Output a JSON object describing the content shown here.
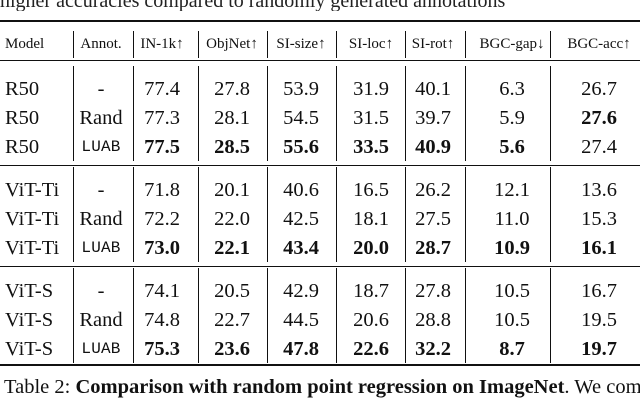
{
  "top_fragment": "higher accuracies compared to randomly generated annotations",
  "table": {
    "columns": [
      {
        "key": "model",
        "label": "Model"
      },
      {
        "key": "annot",
        "label": "Annot."
      },
      {
        "key": "in1k",
        "label": "IN-1k↑"
      },
      {
        "key": "objnet",
        "label": "ObjNet↑"
      },
      {
        "key": "sisize",
        "label": "SI-size↑"
      },
      {
        "key": "siloc",
        "label": "SI-loc↑"
      },
      {
        "key": "sirot",
        "label": "SI-rot↑"
      },
      {
        "key": "bgcgap",
        "label": "BGC-gap↓"
      },
      {
        "key": "bgcacc",
        "label": "BGC-acc↑"
      }
    ],
    "groups": [
      {
        "rows": [
          {
            "model": "R50",
            "annot": "-",
            "in1k": "77.4",
            "objnet": "27.8",
            "sisize": "53.9",
            "siloc": "31.9",
            "sirot": "40.1",
            "bgcgap": "6.3",
            "bgcacc": "26.7",
            "bold": []
          },
          {
            "model": "R50",
            "annot": "Rand",
            "in1k": "77.3",
            "objnet": "28.1",
            "sisize": "54.5",
            "siloc": "31.5",
            "sirot": "39.7",
            "bgcgap": "5.9",
            "bgcacc": "27.6",
            "bold": [
              "bgcacc"
            ]
          },
          {
            "model": "R50",
            "annot": "LUAB",
            "in1k": "77.5",
            "objnet": "28.5",
            "sisize": "55.6",
            "siloc": "33.5",
            "sirot": "40.9",
            "bgcgap": "5.6",
            "bgcacc": "27.4",
            "bold": [
              "in1k",
              "objnet",
              "sisize",
              "siloc",
              "sirot",
              "bgcgap"
            ]
          }
        ]
      },
      {
        "rows": [
          {
            "model": "ViT-Ti",
            "annot": "-",
            "in1k": "71.8",
            "objnet": "20.1",
            "sisize": "40.6",
            "siloc": "16.5",
            "sirot": "26.2",
            "bgcgap": "12.1",
            "bgcacc": "13.6",
            "bold": []
          },
          {
            "model": "ViT-Ti",
            "annot": "Rand",
            "in1k": "72.2",
            "objnet": "22.0",
            "sisize": "42.5",
            "siloc": "18.1",
            "sirot": "27.5",
            "bgcgap": "11.0",
            "bgcacc": "15.3",
            "bold": []
          },
          {
            "model": "ViT-Ti",
            "annot": "LUAB",
            "in1k": "73.0",
            "objnet": "22.1",
            "sisize": "43.4",
            "siloc": "20.0",
            "sirot": "28.7",
            "bgcgap": "10.9",
            "bgcacc": "16.1",
            "bold": [
              "in1k",
              "objnet",
              "sisize",
              "siloc",
              "sirot",
              "bgcgap",
              "bgcacc"
            ]
          }
        ]
      },
      {
        "rows": [
          {
            "model": "ViT-S",
            "annot": "-",
            "in1k": "74.1",
            "objnet": "20.5",
            "sisize": "42.9",
            "siloc": "18.7",
            "sirot": "27.8",
            "bgcgap": "10.5",
            "bgcacc": "16.7",
            "bold": []
          },
          {
            "model": "ViT-S",
            "annot": "Rand",
            "in1k": "74.8",
            "objnet": "22.7",
            "sisize": "44.5",
            "siloc": "20.6",
            "sirot": "28.8",
            "bgcgap": "10.5",
            "bgcacc": "19.5",
            "bold": []
          },
          {
            "model": "ViT-S",
            "annot": "LUAB",
            "in1k": "75.3",
            "objnet": "23.6",
            "sisize": "47.8",
            "siloc": "22.6",
            "sirot": "32.2",
            "bgcgap": "8.7",
            "bgcacc": "19.7",
            "bold": [
              "in1k",
              "objnet",
              "sisize",
              "siloc",
              "sirot",
              "bgcgap",
              "bgcacc"
            ]
          }
        ]
      }
    ]
  },
  "caption": {
    "prefix": "Table 2: ",
    "bold_text": "Comparison with random point regression on ImageNet",
    "rest": ". We compare the accuracies of supervised learning with"
  }
}
